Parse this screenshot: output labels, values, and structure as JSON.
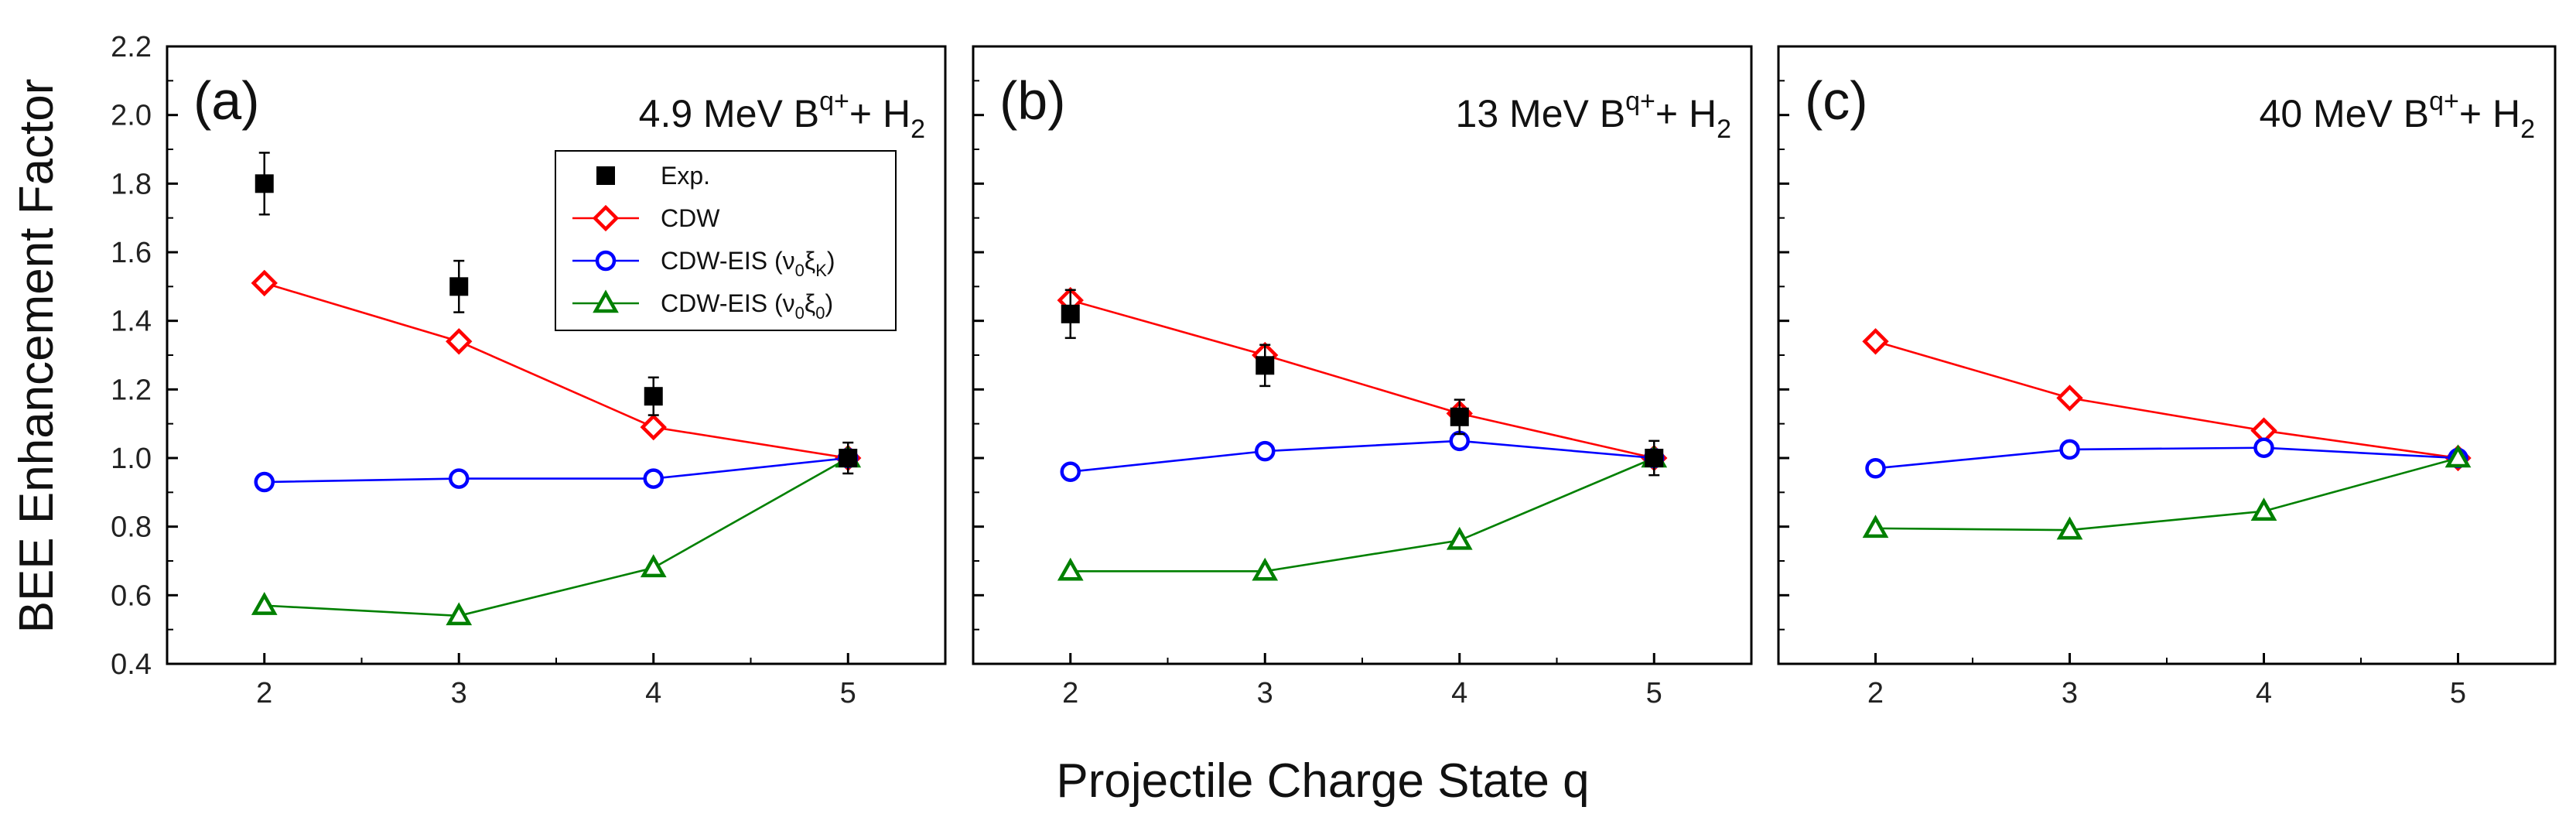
{
  "figure": {
    "xlabel": "Projectile Charge State q",
    "ylabel": "BEE Enhancement Factor"
  },
  "legend": {
    "items": [
      {
        "label": "Exp.",
        "sub": "",
        "tail": "",
        "marker": "square",
        "color": "#000000"
      },
      {
        "label": "CDW",
        "sub": "",
        "tail": "",
        "marker": "diamond",
        "color": "#ff0000"
      },
      {
        "label": "CDW-EIS (ν",
        "sub": "0",
        "mid": "ξ",
        "sub2": "K",
        "tail": ")",
        "marker": "circle",
        "color": "#0000ff"
      },
      {
        "label": "CDW-EIS (ν",
        "sub": "0",
        "mid": "ξ",
        "sub2": "0",
        "tail": ")",
        "marker": "triangle",
        "color": "#008000"
      }
    ]
  },
  "chart_data": [
    {
      "type": "line",
      "panel": "(a)",
      "title": {
        "energy": "4.9 MeV B",
        "sup": "q+",
        "tail": "+ H",
        "sub": "2"
      },
      "x": [
        2,
        3,
        4,
        5
      ],
      "xlim": [
        1.5,
        5.5
      ],
      "ylim": [
        0.4,
        2.2
      ],
      "xticks": [
        2,
        3,
        4,
        5
      ],
      "yticks": [
        "0.4",
        "0.6",
        "0.8",
        "1.0",
        "1.2",
        "1.4",
        "1.6",
        "1.8",
        "2.0",
        "2.2"
      ],
      "series": [
        {
          "name": "CDW",
          "color": "#ff0000",
          "marker": "diamond",
          "values": [
            1.51,
            1.34,
            1.09,
            1.0
          ]
        },
        {
          "name": "CDW-EIS (ν0ξK)",
          "color": "#0000ff",
          "marker": "circle",
          "values": [
            0.93,
            0.94,
            0.94,
            1.0
          ]
        },
        {
          "name": "CDW-EIS (ν0ξ0)",
          "color": "#008000",
          "marker": "triangle",
          "values": [
            0.57,
            0.54,
            0.68,
            1.0
          ]
        },
        {
          "name": "Exp.",
          "color": "#000000",
          "marker": "square",
          "values": [
            1.8,
            1.5,
            1.18,
            1.0
          ],
          "errors": [
            0.09,
            0.075,
            0.055,
            0.045
          ]
        }
      ]
    },
    {
      "type": "line",
      "panel": "(b)",
      "title": {
        "energy": "13 MeV B",
        "sup": "q+",
        "tail": "+ H",
        "sub": "2"
      },
      "x": [
        2,
        3,
        4,
        5
      ],
      "xlim": [
        1.5,
        5.5
      ],
      "ylim": [
        0.4,
        2.2
      ],
      "xticks": [
        2,
        3,
        4,
        5
      ],
      "yticks": [],
      "series": [
        {
          "name": "CDW",
          "color": "#ff0000",
          "marker": "diamond",
          "values": [
            1.46,
            1.3,
            1.13,
            1.0
          ]
        },
        {
          "name": "CDW-EIS (ν0ξK)",
          "color": "#0000ff",
          "marker": "circle",
          "values": [
            0.96,
            1.02,
            1.05,
            1.0
          ]
        },
        {
          "name": "CDW-EIS (ν0ξ0)",
          "color": "#008000",
          "marker": "triangle",
          "values": [
            0.67,
            0.67,
            0.76,
            1.0
          ]
        },
        {
          "name": "Exp.",
          "color": "#000000",
          "marker": "square",
          "values": [
            1.42,
            1.27,
            1.12,
            1.0
          ],
          "errors": [
            0.07,
            0.06,
            0.05,
            0.05
          ]
        }
      ]
    },
    {
      "type": "line",
      "panel": "(c)",
      "title": {
        "energy": "40 MeV B",
        "sup": "q+",
        "tail": "+ H",
        "sub": "2"
      },
      "x": [
        2,
        3,
        4,
        5
      ],
      "xlim": [
        1.5,
        5.5
      ],
      "ylim": [
        0.4,
        2.2
      ],
      "xticks": [
        2,
        3,
        4,
        5
      ],
      "yticks": [],
      "series": [
        {
          "name": "CDW",
          "color": "#ff0000",
          "marker": "diamond",
          "values": [
            1.34,
            1.175,
            1.08,
            1.0
          ]
        },
        {
          "name": "CDW-EIS (ν0ξK)",
          "color": "#0000ff",
          "marker": "circle",
          "values": [
            0.97,
            1.025,
            1.03,
            1.0
          ]
        },
        {
          "name": "CDW-EIS (ν0ξ0)",
          "color": "#008000",
          "marker": "triangle",
          "values": [
            0.795,
            0.79,
            0.845,
            1.0
          ]
        }
      ]
    }
  ]
}
